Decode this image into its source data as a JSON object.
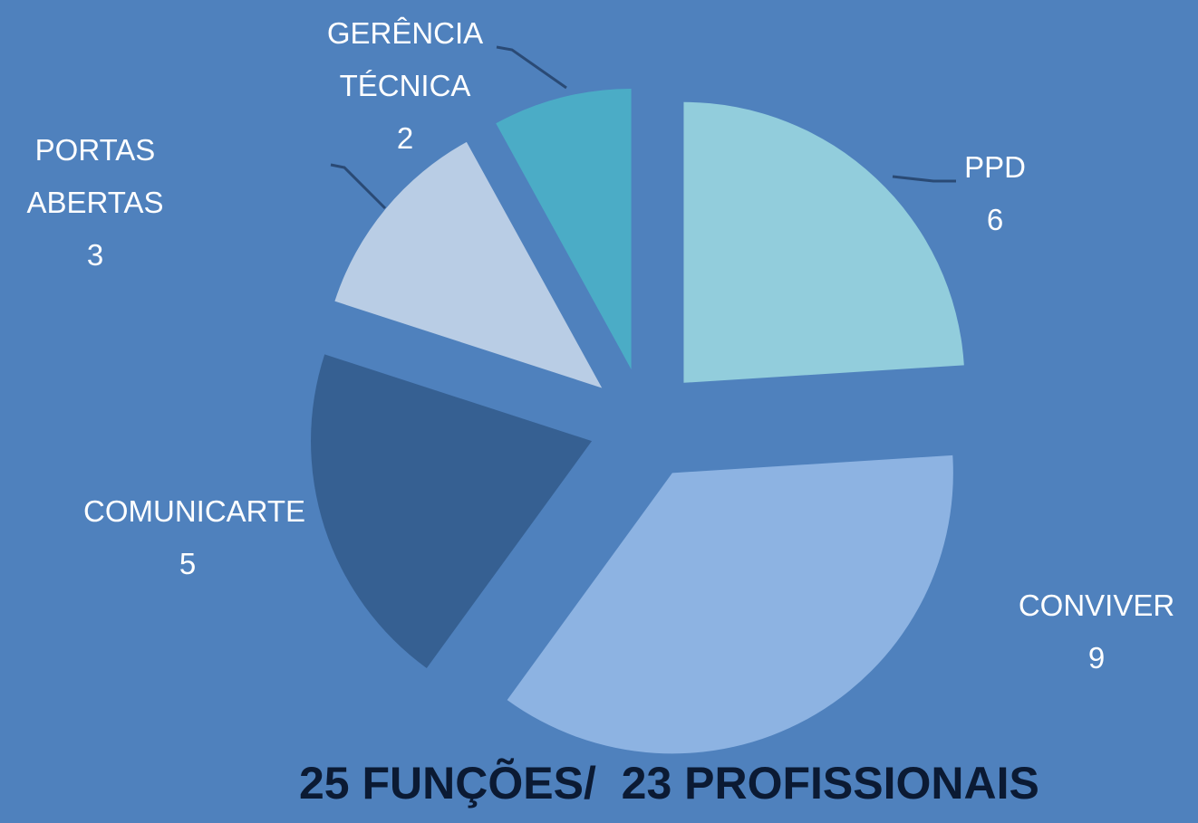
{
  "chart_data": {
    "type": "pie",
    "categories": [
      "PPD",
      "CONVIVER",
      "COMUNICARTE",
      "PORTAS ABERTAS",
      "GERÊNCIA TÉCNICA"
    ],
    "values": [
      6,
      9,
      5,
      3,
      2
    ],
    "colors": [
      "#92cddc",
      "#8db3e2",
      "#366092",
      "#b9cde5",
      "#4bacc6"
    ],
    "footnote": "25 FUNÇÕES/  23 PROFISSIONAIS"
  }
}
